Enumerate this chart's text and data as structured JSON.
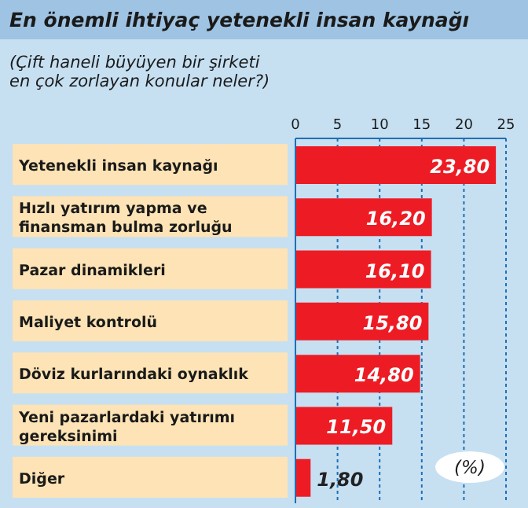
{
  "chart_data": {
    "type": "bar",
    "orientation": "horizontal",
    "title": "En önemli ihtiyaç yetenekli insan kaynağı",
    "subtitle": "(Çift haneli büyüyen bir şirketi en çok zorlayan konular neler?)",
    "categories": [
      "Yetenekli insan kaynağı",
      "Hızlı yatırım yapma ve finansman bulma zorluğu",
      "Pazar dinamikleri",
      "Maliyet kontrolü",
      "Döviz kurlarındaki oynaklık",
      "Yeni pazarlardaki yatırımı gereksinimi",
      "Diğer"
    ],
    "values": [
      23.8,
      16.2,
      16.1,
      15.8,
      14.8,
      11.5,
      1.8
    ],
    "value_labels": [
      "23,80",
      "16,20",
      "16,10",
      "15,80",
      "14,80",
      "11,50",
      "1,80"
    ],
    "color": "#ed1c24",
    "xlim": [
      0,
      25
    ],
    "xticks": [
      0,
      5,
      10,
      15,
      20,
      25
    ],
    "grid": "x",
    "annotations": [
      "(%)"
    ]
  }
}
